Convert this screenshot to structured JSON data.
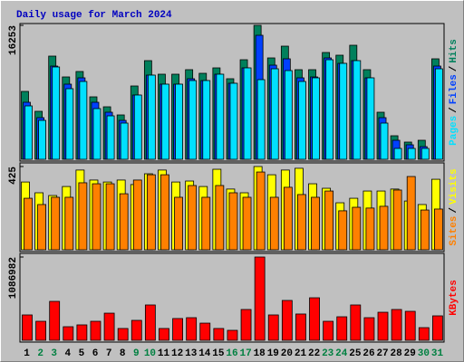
{
  "title": "Daily usage for March 2024",
  "legend_separator": "/",
  "chart_data": [
    {
      "type": "bar",
      "ylim": [
        0,
        16253
      ],
      "yticks": [
        16253
      ],
      "series": [
        {
          "name": "Hits",
          "color": "#00805c",
          "values": [
            8235,
            5820,
            12519,
            9993,
            10652,
            7577,
            6369,
            5381,
            8895,
            11970,
            10323,
            10323,
            10872,
            10432,
            11091,
            9774,
            12080,
            16253,
            12299,
            13727,
            10872,
            10872,
            12958,
            12629,
            13837,
            10872,
            5710,
            2855,
            2086,
            2306,
            12190
          ]
        },
        {
          "name": "Files",
          "color": "#0040ff",
          "values": [
            6918,
            5051,
            11311,
            9115,
            9883,
            6918,
            5710,
            4722,
            7797,
            10213,
            9115,
            9115,
            9774,
            9554,
            10323,
            9225,
            11091,
            15045,
            11421,
            12190,
            9883,
            9993,
            12299,
            11640,
            11970,
            9883,
            5051,
            2306,
            1757,
            1537,
            11311
          ]
        },
        {
          "name": "Pages",
          "color": "#00e0ff",
          "values": [
            6479,
            4722,
            11201,
            8566,
            9444,
            6150,
            5271,
            4393,
            7797,
            10213,
            9115,
            9115,
            9554,
            9554,
            10323,
            9225,
            11091,
            9664,
            10982,
            10762,
            9444,
            9883,
            12080,
            11640,
            11970,
            9883,
            4393,
            1318,
            1318,
            1318,
            10982
          ]
        }
      ]
    },
    {
      "type": "bar",
      "ylim": [
        0,
        425
      ],
      "yticks": [
        425
      ],
      "series": [
        {
          "name": "Visits",
          "color": "#ffff00",
          "values": [
            346,
            291,
            277,
            323,
            407,
            356,
            346,
            356,
            333,
            388,
            407,
            346,
            351,
            323,
            411,
            310,
            291,
            425,
            383,
            407,
            416,
            337,
            314,
            240,
            263,
            300,
            300,
            310,
            249,
            231,
            360
          ]
        },
        {
          "name": "Sites",
          "color": "#ff8000",
          "values": [
            263,
            231,
            268,
            268,
            342,
            337,
            337,
            286,
            356,
            383,
            383,
            268,
            328,
            268,
            328,
            291,
            268,
            397,
            268,
            319,
            282,
            268,
            300,
            199,
            217,
            213,
            222,
            305,
            374,
            203,
            208
          ]
        }
      ]
    },
    {
      "type": "bar",
      "ylim": [
        0,
        1086982
      ],
      "yticks": [
        1086982
      ],
      "categories": [
        "1",
        "2",
        "3",
        "4",
        "5",
        "6",
        "7",
        "8",
        "9",
        "10",
        "11",
        "12",
        "13",
        "14",
        "15",
        "16",
        "17",
        "18",
        "19",
        "20",
        "21",
        "22",
        "23",
        "24",
        "25",
        "26",
        "27",
        "28",
        "29",
        "30",
        "31"
      ],
      "category_colors": [
        "#000000",
        "#008040",
        "#008040",
        "#000000",
        "#000000",
        "#000000",
        "#000000",
        "#000000",
        "#008040",
        "#008040",
        "#000000",
        "#000000",
        "#000000",
        "#000000",
        "#000000",
        "#008040",
        "#008040",
        "#000000",
        "#000000",
        "#000000",
        "#000000",
        "#000000",
        "#008040",
        "#008040",
        "#000000",
        "#000000",
        "#000000",
        "#000000",
        "#000000",
        "#008040",
        "#008040"
      ],
      "series": [
        {
          "name": "KBytes",
          "color": "#ff0000",
          "values": [
            331000,
            248000,
            508000,
            177000,
            201000,
            248000,
            354000,
            154000,
            260000,
            461000,
            154000,
            284000,
            295000,
            224000,
            154000,
            130000,
            402000,
            1086982,
            331000,
            520000,
            343000,
            555000,
            248000,
            307000,
            461000,
            295000,
            366000,
            402000,
            378000,
            165000,
            319000
          ]
        }
      ]
    }
  ]
}
